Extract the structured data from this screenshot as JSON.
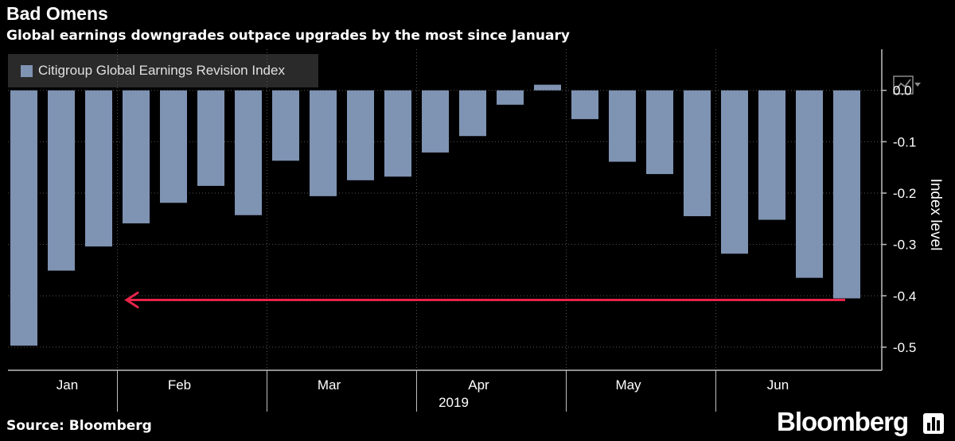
{
  "title": "Bad Omens",
  "subtitle": "Global earnings downgrades outpace upgrades by the most since January",
  "source": "Source: Bloomberg",
  "brand": "Bloomberg",
  "colors": {
    "background": "#000000",
    "bar": "#7f93b3",
    "arrow": "#e8234a",
    "grid": "#555555"
  },
  "icons": {
    "brand": "bar-chart-icon",
    "chart_type": "line-chart-icon"
  },
  "chart_data": {
    "type": "bar",
    "title": "Bad Omens",
    "subtitle": "Global earnings downgrades outpace upgrades by the most since January",
    "series": [
      {
        "name": "Citigroup Global Earnings Revision Index",
        "values": [
          -0.497,
          -0.351,
          -0.304,
          -0.259,
          -0.219,
          -0.186,
          -0.243,
          -0.137,
          -0.206,
          -0.175,
          -0.168,
          -0.121,
          -0.089,
          -0.028,
          0.011,
          -0.056,
          -0.139,
          -0.163,
          -0.245,
          -0.318,
          -0.252,
          -0.365,
          -0.405
        ]
      }
    ],
    "ylabel": "Index level",
    "xlabel": "2019",
    "ylim": [
      -0.545,
      0.08
    ],
    "yticks": [
      0.0,
      -0.1,
      -0.2,
      -0.3,
      -0.4,
      -0.5
    ],
    "ytick_labels": [
      "0.0",
      "-0.1",
      "-0.2",
      "-0.3",
      "-0.4",
      "-0.5"
    ],
    "month_labels": [
      "Jan",
      "Feb",
      "Mar",
      "Apr",
      "May",
      "Jun"
    ],
    "month_label_after_bar": [
      1,
      4,
      8,
      12,
      16,
      20
    ],
    "month_dividers_after_bar": [
      2,
      6,
      10,
      14,
      18
    ],
    "x_axis_year": "2019",
    "annotation": {
      "type": "arrow",
      "value": -0.405,
      "from_bar": 22,
      "to_bar": 3,
      "color": "#e8234a"
    },
    "legend": "top-left",
    "grid": true
  }
}
